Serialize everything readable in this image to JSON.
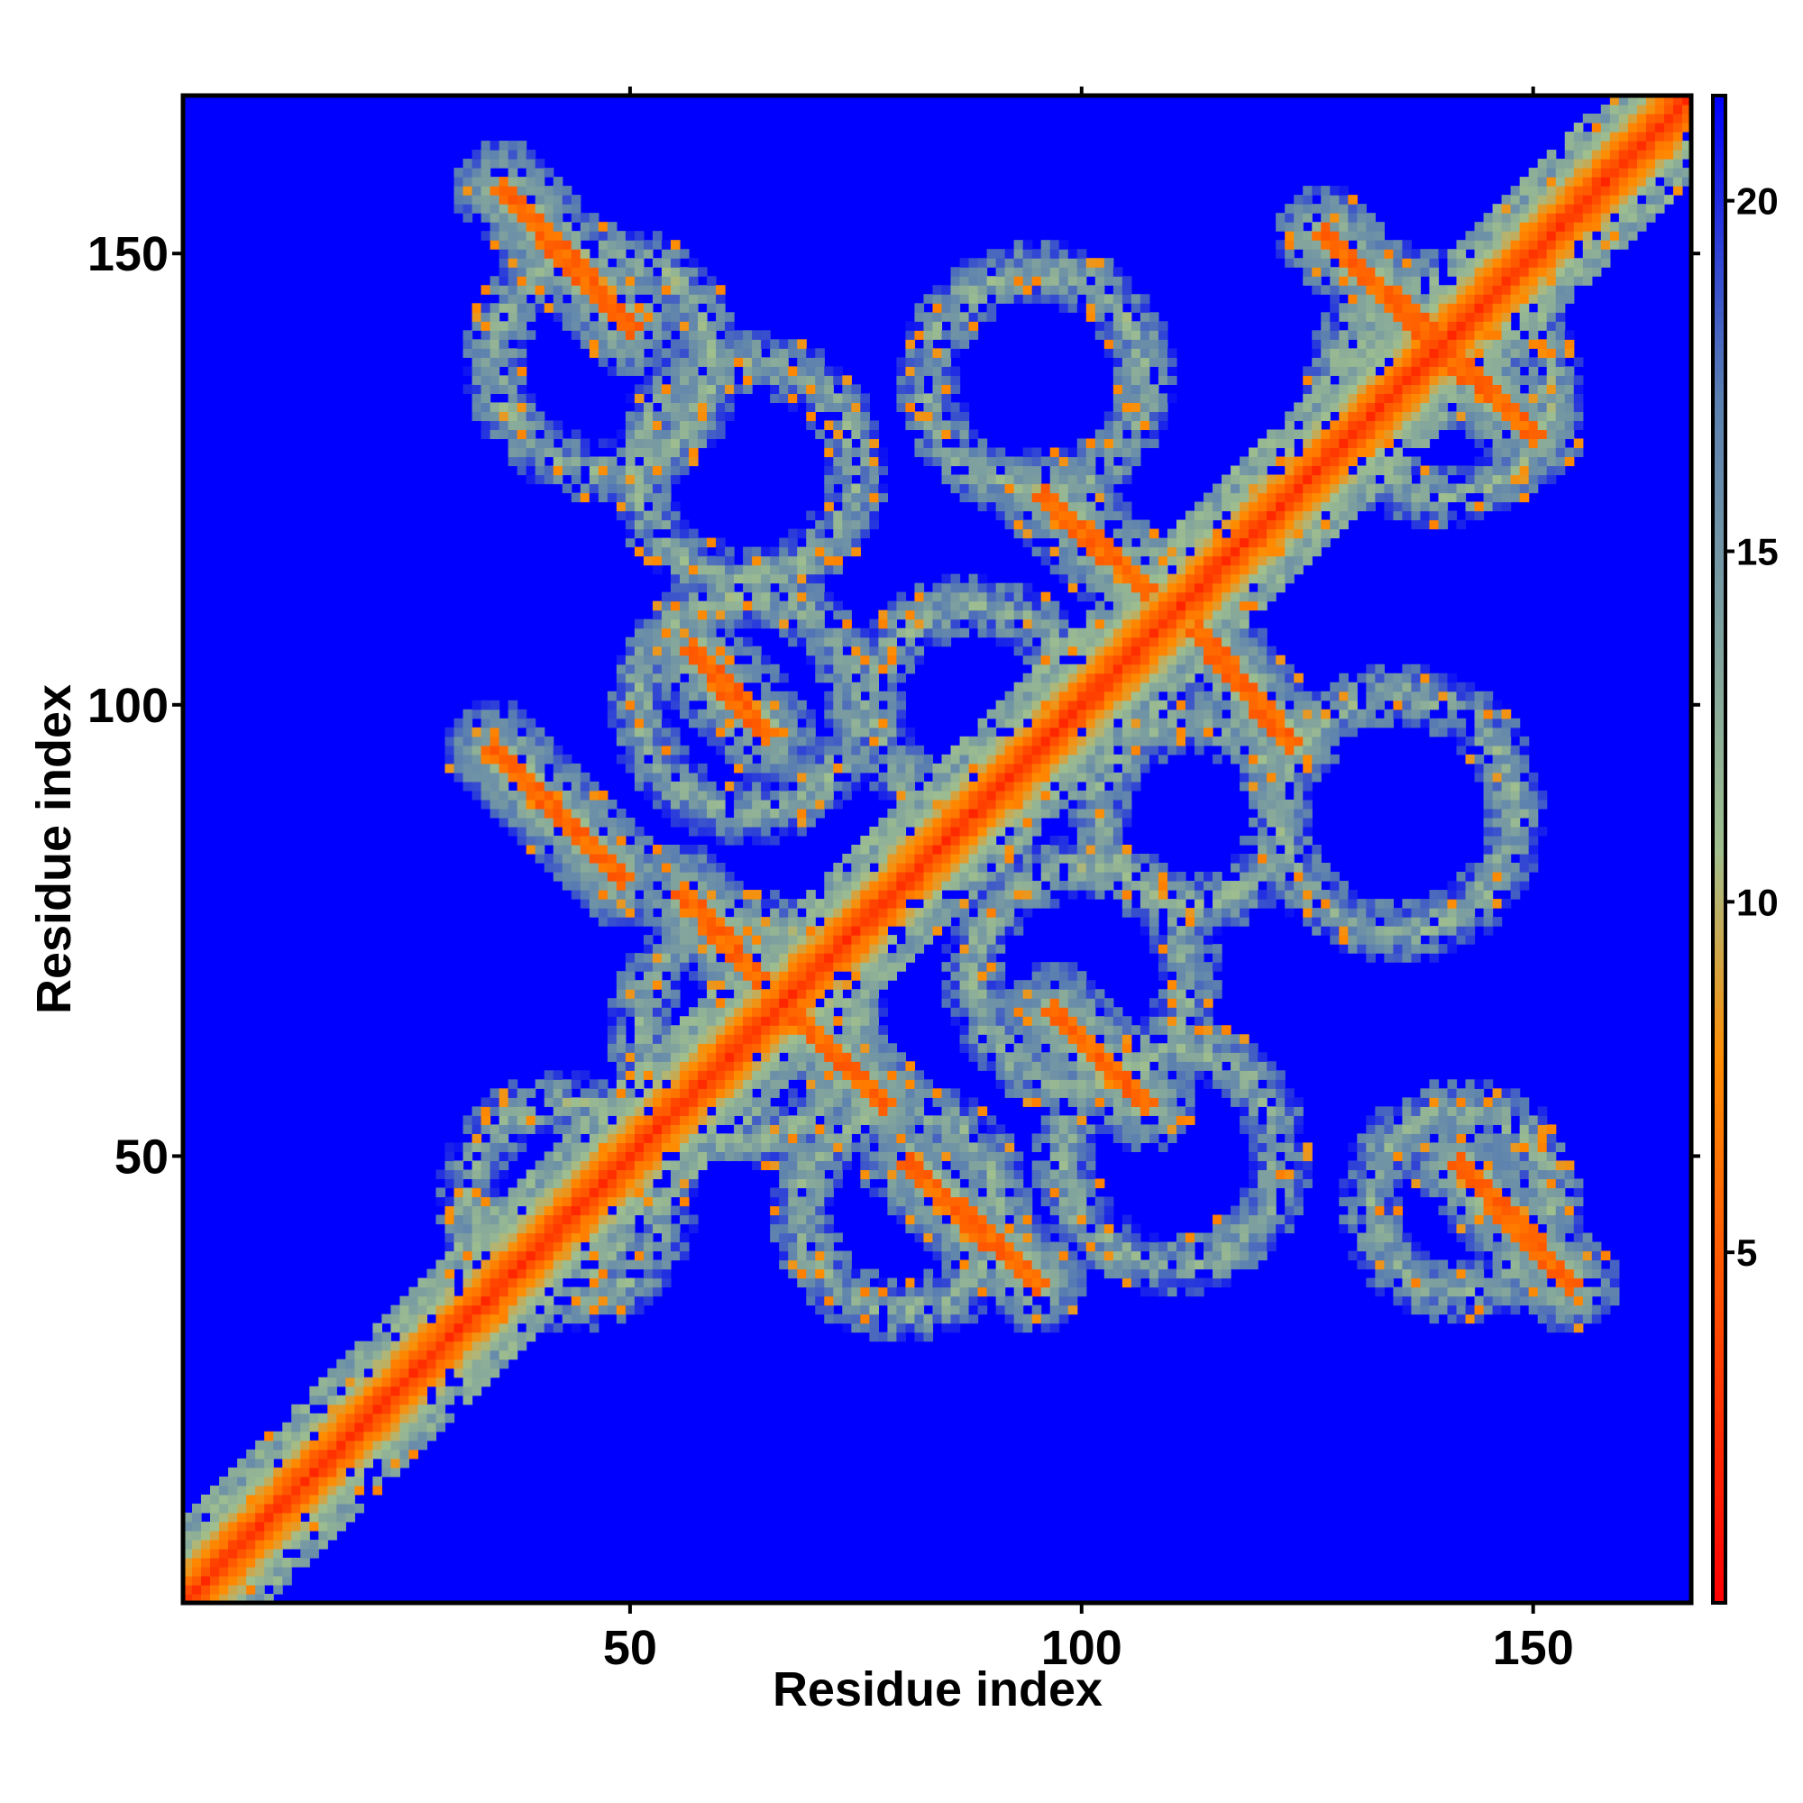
{
  "chart_data": {
    "type": "heatmap",
    "title": "",
    "xlabel": "Residue index",
    "ylabel": "Residue index",
    "xlim": [
      1,
      167
    ],
    "ylim": [
      1,
      167
    ],
    "x_ticks": [
      50,
      100,
      150
    ],
    "y_ticks": [
      50,
      100,
      150
    ],
    "x_tick_labels": [
      "50",
      "100",
      "150"
    ],
    "y_tick_labels": [
      "50",
      "100",
      "150"
    ],
    "colorbar": {
      "range": [
        0,
        21.5
      ],
      "ticks": [
        5,
        10,
        15,
        20
      ],
      "tick_labels": [
        "5",
        "10",
        "15",
        "20"
      ],
      "colors": [
        "#ff0000",
        "#ff8c00",
        "#9fbf8f",
        "#5a7fb0",
        "#0000ff"
      ],
      "stops": [
        0,
        0.36,
        0.5,
        0.8,
        1.0
      ]
    },
    "background_color": "#0000ff",
    "diagonal_color": "#ff0000",
    "contact_bands": [
      {
        "x": [
          36,
          50
        ],
        "y": [
          157,
          142
        ]
      },
      {
        "x": [
          35,
          49
        ],
        "y": [
          95,
          81
        ]
      },
      {
        "x": [
          57,
          65
        ],
        "y": [
          106,
          97
        ]
      },
      {
        "x": [
          56,
          64
        ],
        "y": [
          79,
          70
        ]
      },
      {
        "x": [
          68,
          78
        ],
        "y": [
          66,
          56
        ]
      },
      {
        "x": [
          81,
          95
        ],
        "y": [
          49,
          36
        ]
      },
      {
        "x": [
          96,
          107
        ],
        "y": [
          123,
          113
        ]
      },
      {
        "x": [
          97,
          107
        ],
        "y": [
          66,
          56
        ]
      },
      {
        "x": [
          113,
          123
        ],
        "y": [
          108,
          96
        ]
      },
      {
        "x": [
          142,
          154
        ],
        "y": [
          49,
          36
        ]
      },
      {
        "x": [
          127,
          150
        ],
        "y": [
          152,
          130
        ]
      }
    ],
    "contact_rings": [
      {
        "cx": 63,
        "cy": 100,
        "r": 12
      },
      {
        "cx": 95,
        "cy": 136,
        "r": 12
      },
      {
        "cx": 63,
        "cy": 126,
        "r": 12
      },
      {
        "cx": 63,
        "cy": 64,
        "r": 12
      },
      {
        "cx": 100,
        "cy": 70,
        "r": 12
      },
      {
        "cx": 135,
        "cy": 88,
        "r": 13
      },
      {
        "cx": 88,
        "cy": 100,
        "r": 11
      },
      {
        "cx": 110,
        "cy": 50,
        "r": 12
      },
      {
        "cx": 47,
        "cy": 138,
        "r": 12
      },
      {
        "cx": 140,
        "cy": 135,
        "r": 12
      },
      {
        "cx": 43,
        "cy": 45,
        "r": 11
      },
      {
        "cx": 142,
        "cy": 45,
        "r": 10
      },
      {
        "cx": 80,
        "cy": 44,
        "r": 11
      },
      {
        "cx": 112,
        "cy": 88,
        "r": 10
      }
    ]
  }
}
